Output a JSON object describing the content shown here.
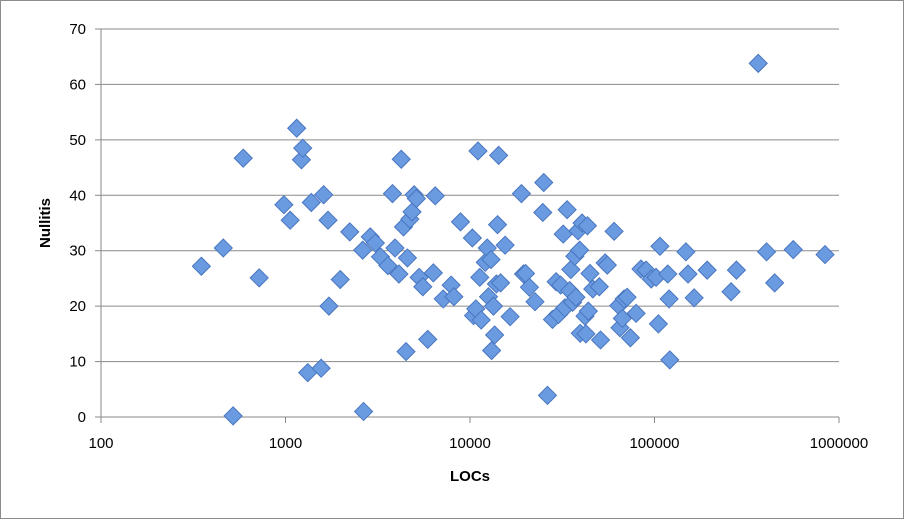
{
  "chart_data": {
    "type": "scatter",
    "xlabel": "LOCs",
    "ylabel": "Nullitis",
    "x_scale": "log",
    "xlim": [
      100,
      1000000
    ],
    "ylim": [
      0,
      70
    ],
    "x_ticks": [
      100,
      1000,
      10000,
      100000,
      1000000
    ],
    "x_tick_labels": [
      "100",
      "1000",
      "10000",
      "100000",
      "1000000"
    ],
    "y_ticks": [
      0,
      10,
      20,
      30,
      40,
      50,
      60,
      70
    ],
    "y_tick_labels": [
      "0",
      "10",
      "20",
      "30",
      "40",
      "50",
      "60",
      "70"
    ],
    "grid": "horizontal",
    "legend": "none",
    "marker": "diamond",
    "marker_color": "#6a9be0",
    "marker_edge_color": "#4a76c0",
    "gridline_color": "#8a8a8a",
    "points": [
      [
        350,
        27.2
      ],
      [
        460,
        30.5
      ],
      [
        520,
        0.2
      ],
      [
        590,
        46.7
      ],
      [
        720,
        25.1
      ],
      [
        980,
        38.3
      ],
      [
        1060,
        35.5
      ],
      [
        1150,
        52.1
      ],
      [
        1220,
        46.4
      ],
      [
        1240,
        48.5
      ],
      [
        1320,
        8.0
      ],
      [
        1380,
        38.7
      ],
      [
        1560,
        8.8
      ],
      [
        1610,
        40.1
      ],
      [
        1700,
        35.5
      ],
      [
        1720,
        20.0
      ],
      [
        1980,
        24.8
      ],
      [
        2230,
        33.4
      ],
      [
        2620,
        30.1
      ],
      [
        2650,
        1.0
      ],
      [
        2880,
        32.5
      ],
      [
        3070,
        31.4
      ],
      [
        3270,
        28.9
      ],
      [
        3590,
        27.3
      ],
      [
        3800,
        40.3
      ],
      [
        3920,
        30.5
      ],
      [
        4120,
        25.8
      ],
      [
        4240,
        46.5
      ],
      [
        4360,
        34.3
      ],
      [
        4500,
        11.8
      ],
      [
        4580,
        28.7
      ],
      [
        4720,
        35.7
      ],
      [
        4850,
        37.0
      ],
      [
        4980,
        40.1
      ],
      [
        5120,
        39.4
      ],
      [
        5300,
        25.2
      ],
      [
        5550,
        23.5
      ],
      [
        5900,
        14.0
      ],
      [
        6330,
        26.0
      ],
      [
        6480,
        39.9
      ],
      [
        7160,
        21.3
      ],
      [
        7900,
        23.8
      ],
      [
        8180,
        21.7
      ],
      [
        8880,
        35.2
      ],
      [
        10300,
        32.3
      ],
      [
        10450,
        18.3
      ],
      [
        10750,
        19.5
      ],
      [
        11050,
        48.0
      ],
      [
        11300,
        25.2
      ],
      [
        11500,
        17.5
      ],
      [
        12100,
        27.9
      ],
      [
        12400,
        30.5
      ],
      [
        12600,
        21.7
      ],
      [
        13000,
        28.4
      ],
      [
        13100,
        12.0
      ],
      [
        13400,
        20.0
      ],
      [
        13600,
        14.8
      ],
      [
        13900,
        24.0
      ],
      [
        14100,
        34.7
      ],
      [
        14300,
        47.2
      ],
      [
        14650,
        24.2
      ],
      [
        15500,
        31.0
      ],
      [
        16500,
        18.1
      ],
      [
        19000,
        40.3
      ],
      [
        19500,
        25.8
      ],
      [
        20000,
        25.9
      ],
      [
        21000,
        23.4
      ],
      [
        22500,
        20.8
      ],
      [
        24800,
        36.9
      ],
      [
        25100,
        42.3
      ],
      [
        26300,
        3.9
      ],
      [
        28000,
        17.6
      ],
      [
        29300,
        24.4
      ],
      [
        30200,
        18.5
      ],
      [
        31000,
        23.8
      ],
      [
        32000,
        33.0
      ],
      [
        32700,
        19.7
      ],
      [
        33600,
        37.4
      ],
      [
        34700,
        22.8
      ],
      [
        35200,
        26.6
      ],
      [
        36000,
        20.7
      ],
      [
        37000,
        29.0
      ],
      [
        37500,
        21.6
      ],
      [
        38500,
        33.6
      ],
      [
        39300,
        30.1
      ],
      [
        39600,
        15.1
      ],
      [
        40500,
        35.0
      ],
      [
        42000,
        18.2
      ],
      [
        42500,
        15.0
      ],
      [
        43300,
        34.5
      ],
      [
        43800,
        19.1
      ],
      [
        44700,
        25.9
      ],
      [
        46300,
        23.1
      ],
      [
        50200,
        23.5
      ],
      [
        51000,
        13.9
      ],
      [
        54000,
        27.8
      ],
      [
        55500,
        27.4
      ],
      [
        60400,
        33.5
      ],
      [
        64000,
        20.1
      ],
      [
        65000,
        16.1
      ],
      [
        67000,
        17.8
      ],
      [
        68500,
        21.3
      ],
      [
        71000,
        21.6
      ],
      [
        74000,
        14.3
      ],
      [
        79500,
        18.7
      ],
      [
        84500,
        26.7
      ],
      [
        90000,
        26.5
      ],
      [
        96000,
        24.9
      ],
      [
        102000,
        25.2
      ],
      [
        105000,
        16.8
      ],
      [
        107000,
        30.8
      ],
      [
        118000,
        25.8
      ],
      [
        120000,
        21.3
      ],
      [
        121000,
        10.3
      ],
      [
        148000,
        29.8
      ],
      [
        152000,
        25.8
      ],
      [
        164000,
        21.5
      ],
      [
        193000,
        26.5
      ],
      [
        260000,
        22.6
      ],
      [
        278000,
        26.5
      ],
      [
        365000,
        63.8
      ],
      [
        405000,
        29.8
      ],
      [
        448000,
        24.2
      ],
      [
        565000,
        30.2
      ],
      [
        840000,
        29.3
      ]
    ]
  }
}
